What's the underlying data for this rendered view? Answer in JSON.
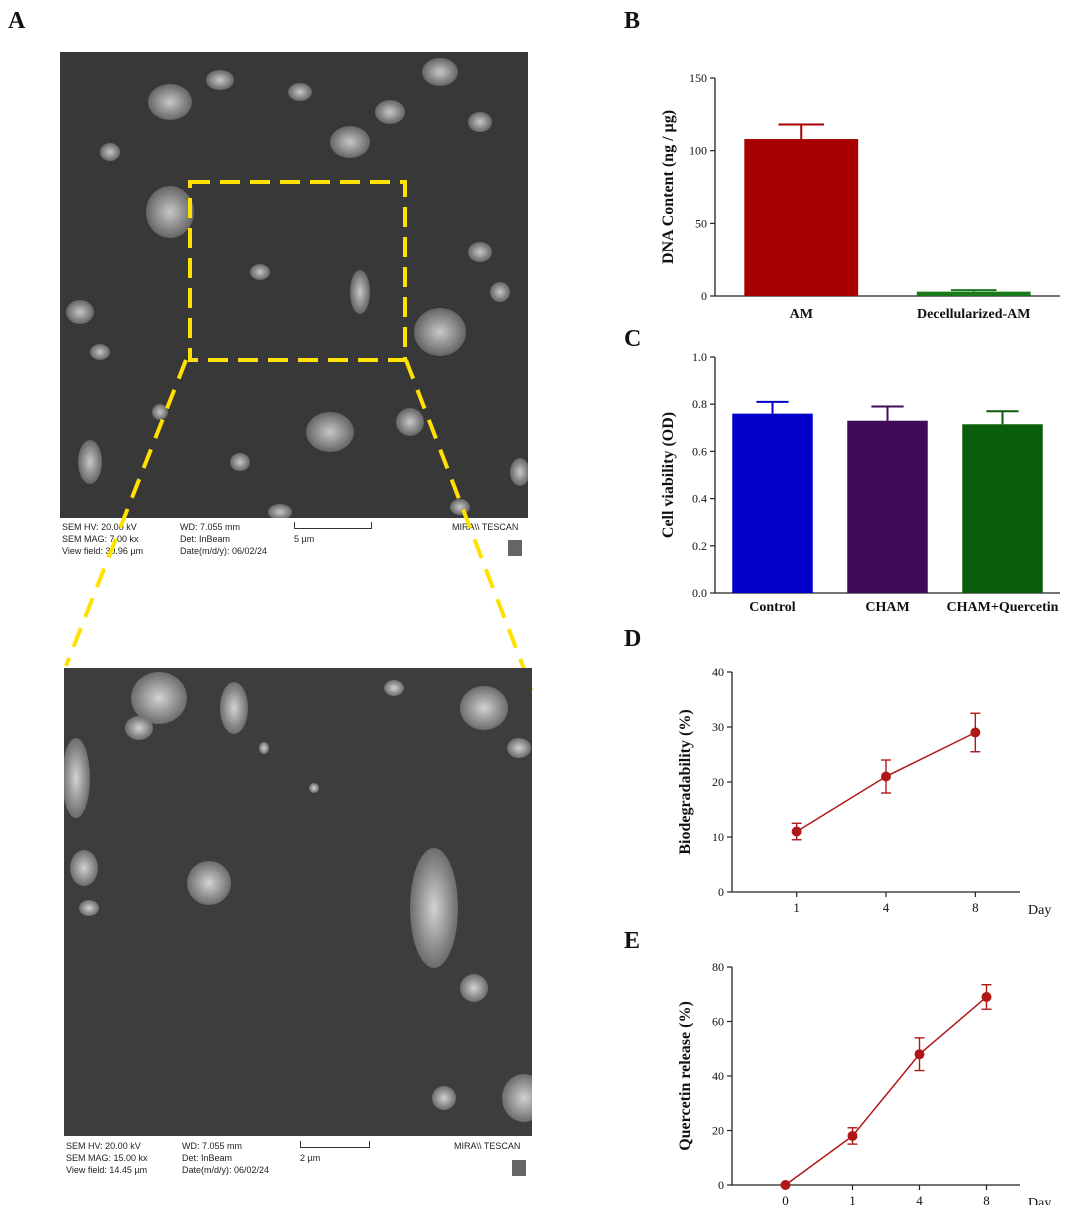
{
  "panels": {
    "A": "A",
    "B": "B",
    "C": "C",
    "D": "D",
    "E": "E"
  },
  "sem_top": {
    "hv": "SEM HV: 20.00 kV",
    "mag": "SEM MAG: 7.00 kx",
    "view": "View field: 30.96 µm",
    "wd": "WD: 7.055 mm",
    "det": "Det: InBeam",
    "date": "Date(m/d/y): 06/02/24",
    "scale": "5 µm",
    "brand": "MIRA\\\\ TESCAN"
  },
  "sem_bottom": {
    "hv": "SEM HV: 20.00 kV",
    "mag": "SEM MAG: 15.00 kx",
    "view": "View field: 14.45 µm",
    "wd": "WD: 7.055 mm",
    "det": "Det: InBeam",
    "date": "Date(m/d/y): 06/02/24",
    "scale": "2 µm",
    "brand": "MIRA\\\\ TESCAN"
  },
  "chart_data": [
    {
      "id": "B",
      "type": "bar",
      "categories": [
        "AM",
        "Decellularized-AM"
      ],
      "values": [
        108,
        3
      ],
      "errors": [
        10,
        1
      ],
      "colors": [
        "#a60000",
        "#1a7a1a"
      ],
      "ylabel": "DNA Content (ng / µg)",
      "xlabel": "",
      "ylim": [
        0,
        150
      ],
      "yticks": [
        0,
        50,
        100,
        150
      ]
    },
    {
      "id": "C",
      "type": "bar",
      "categories": [
        "Control",
        "CHAM",
        "CHAM+Quercetin"
      ],
      "values": [
        0.76,
        0.73,
        0.715
      ],
      "errors": [
        0.05,
        0.06,
        0.055
      ],
      "colors": [
        "#0000c8",
        "#3f0a5a",
        "#0a5e0a"
      ],
      "ylabel": "Cell viability (OD)",
      "xlabel": "",
      "ylim": [
        0,
        1.0
      ],
      "yticks": [
        "0.0",
        "0.2",
        "0.4",
        "0.6",
        "0.8",
        "1.0"
      ]
    },
    {
      "id": "D",
      "type": "line",
      "categories": [
        "1",
        "4",
        "8"
      ],
      "values": [
        11,
        21,
        29
      ],
      "errors": [
        1.5,
        3,
        3.5
      ],
      "color": "#b01818",
      "ylabel": "Biodegradability (%)",
      "xlabel": "Day",
      "ylim": [
        0,
        40
      ],
      "yticks": [
        0,
        10,
        20,
        30,
        40
      ]
    },
    {
      "id": "E",
      "type": "line",
      "categories": [
        "0",
        "1",
        "4",
        "8"
      ],
      "values": [
        0,
        18,
        48,
        69
      ],
      "errors": [
        0,
        3,
        6,
        4.5
      ],
      "color": "#b01818",
      "ylabel": "Quercetin release (%)",
      "xlabel": "Day",
      "ylim": [
        0,
        80
      ],
      "yticks": [
        0,
        20,
        40,
        60,
        80
      ]
    }
  ]
}
